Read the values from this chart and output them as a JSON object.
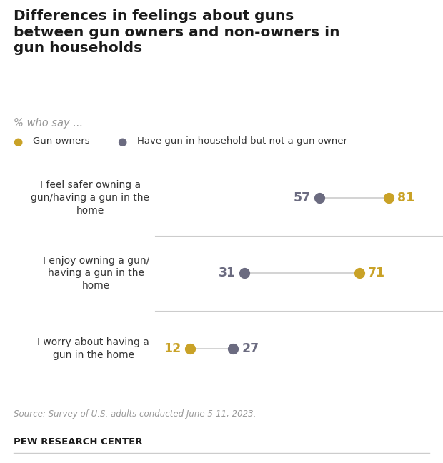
{
  "title": "Differences in feelings about guns\nbetween gun owners and non-owners in\ngun households",
  "subtitle": "% who say ...",
  "categories": [
    "I feel safer owning a\ngun/having a gun in the\nhome",
    "I enjoy owning a gun/\nhaving a gun in the\nhome",
    "I worry about having a\ngun in the home"
  ],
  "gun_owners": [
    81,
    71,
    12
  ],
  "non_owners": [
    57,
    31,
    27
  ],
  "gun_owner_color": "#c9a227",
  "non_owner_color": "#6b6b80",
  "legend_label_owner": "Gun owners",
  "legend_label_non_owner": "Have gun in household but not a gun owner",
  "source_text": "Source: Survey of U.S. adults conducted June 5-11, 2023.",
  "footer_text": "PEW RESEARCH CENTER",
  "background_color": "#ffffff",
  "dot_size": 120
}
